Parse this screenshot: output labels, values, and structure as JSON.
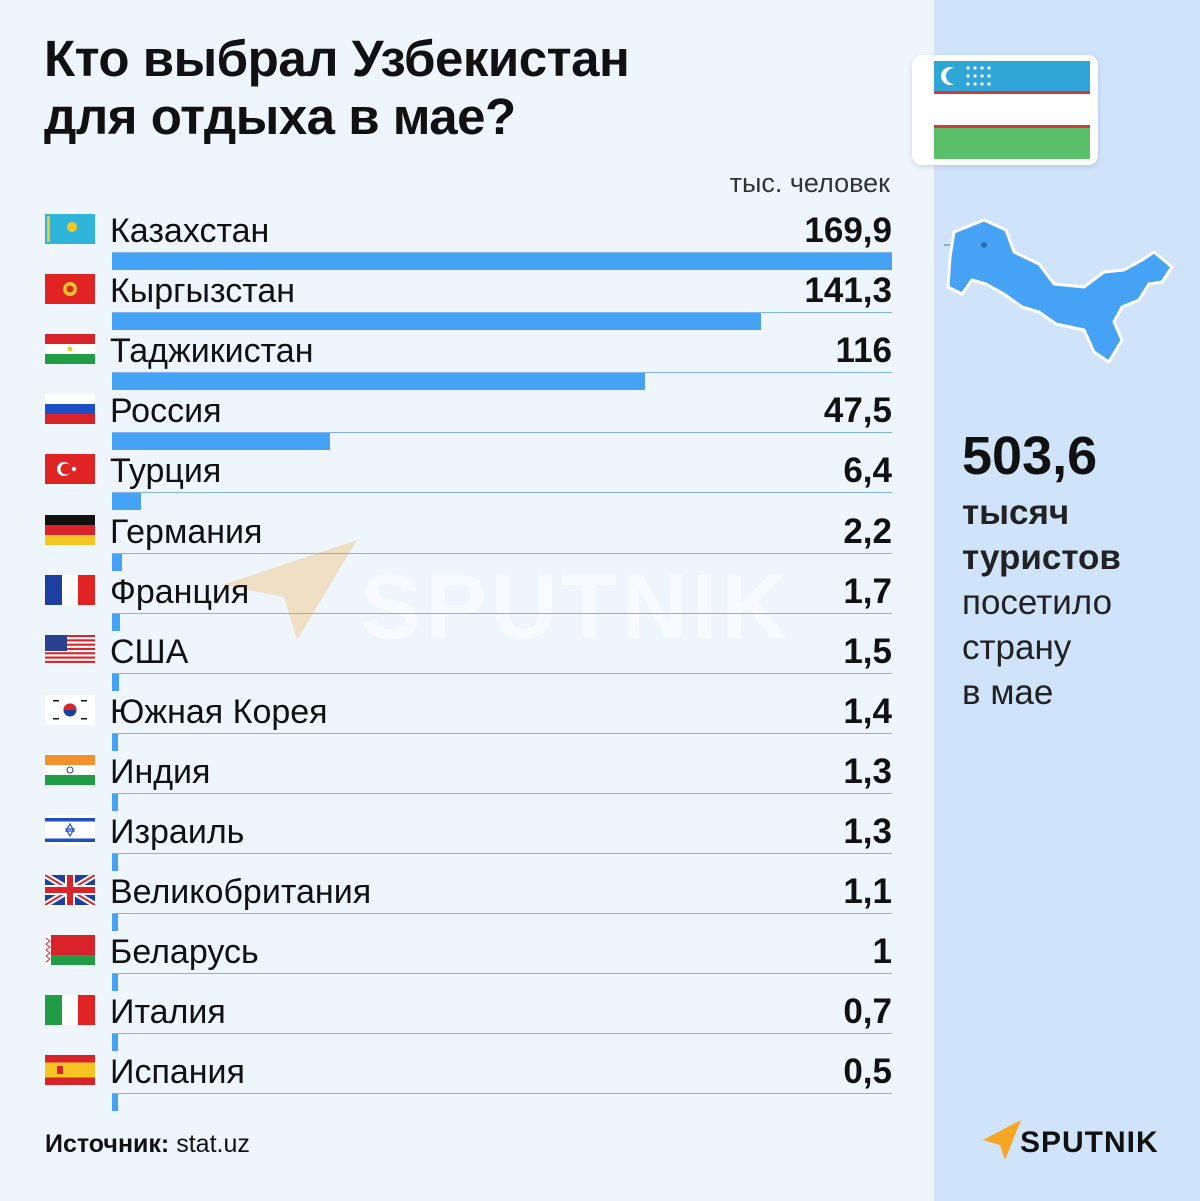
{
  "title_lines": [
    "Кто выбрал Узбекистан",
    "для отдыха в мае?"
  ],
  "unit": "тыс. человек",
  "watermark": "SPUTNIK",
  "source_label": "Источник:",
  "source_value": "stat.uz",
  "total": {
    "number": "503,6",
    "bold_lines": [
      "тысяч",
      "туристов"
    ],
    "regular_lines": [
      "посетило",
      "страну",
      "в мае"
    ]
  },
  "brand": "SPUTNIK",
  "colors": {
    "bar": "#45a2f5",
    "right_panel": "#cfe3fb",
    "map": "#45a2f5",
    "brand_orange": "#f5a623"
  },
  "chart_data": {
    "type": "bar",
    "orientation": "horizontal",
    "title": "Кто выбрал Узбекистан для отдыха в мае?",
    "unit": "тыс. человек",
    "xlim": [
      0,
      169.9
    ],
    "categories": [
      "Казахстан",
      "Кыргызстан",
      "Таджикистан",
      "Россия",
      "Турция",
      "Германия",
      "Франция",
      "США",
      "Южная Корея",
      "Индия",
      "Израиль",
      "Великобритания",
      "Беларусь",
      "Италия",
      "Испания"
    ],
    "values": [
      169.9,
      141.3,
      116,
      47.5,
      6.4,
      2.2,
      1.7,
      1.5,
      1.4,
      1.3,
      1.3,
      1.1,
      1,
      0.7,
      0.5
    ],
    "value_labels": [
      "169,9",
      "141,3",
      "116",
      "47,5",
      "6,4",
      "2,2",
      "1,7",
      "1,5",
      "1,4",
      "1,3",
      "1,3",
      "1,1",
      "1",
      "0,7",
      "0,5"
    ],
    "flags": [
      "flag-kz-icon",
      "flag-kg-icon",
      "flag-tj-icon",
      "flag-ru-icon",
      "flag-tr-icon",
      "flag-de-icon",
      "flag-fr-icon",
      "flag-us-icon",
      "flag-kr-icon",
      "flag-in-icon",
      "flag-il-icon",
      "flag-gb-icon",
      "flag-by-icon",
      "flag-it-icon",
      "flag-es-icon"
    ]
  }
}
